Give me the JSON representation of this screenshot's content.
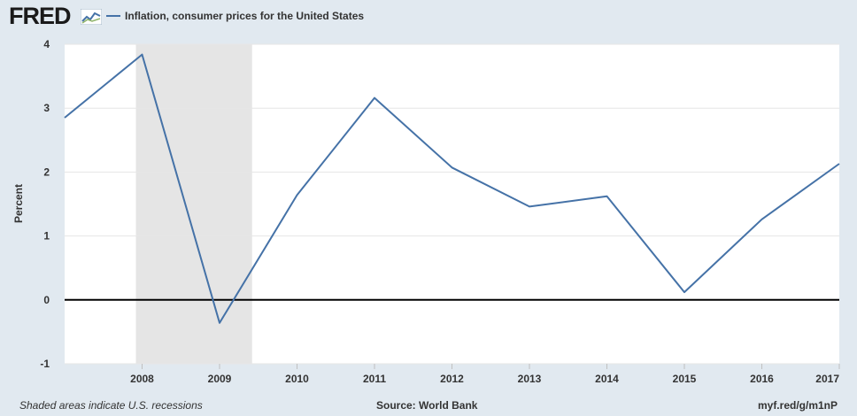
{
  "header": {
    "logo_text": "FRED",
    "logo_icon": "chart-line-icon",
    "legend_label": "Inflation, consumer prices for the United States"
  },
  "footer": {
    "left": "Shaded areas indicate U.S. recessions",
    "center": "Source: World Bank",
    "right": "myf.red/g/m1nP"
  },
  "colors": {
    "background": "#e1e9f0",
    "plot_background": "#ffffff",
    "series": "#4572a7",
    "recession": "#e5e5e5",
    "zero_line": "#000000",
    "grid": "#e6e6e6"
  },
  "chart_data": {
    "type": "line",
    "title": "",
    "xlabel": "",
    "ylabel": "Percent",
    "ylim": [
      -1,
      4
    ],
    "xlim": [
      2007,
      2017
    ],
    "yticks": [
      -1,
      0,
      1,
      2,
      3,
      4
    ],
    "xticks": [
      2008,
      2009,
      2010,
      2011,
      2012,
      2013,
      2014,
      2015,
      2016,
      2017
    ],
    "grid": true,
    "legend_position": "top-left",
    "recessions": [
      {
        "start": 2007.92,
        "end": 2009.42
      }
    ],
    "series": [
      {
        "name": "Inflation, consumer prices for the United States",
        "x": [
          2007,
          2008,
          2009,
          2010,
          2011,
          2012,
          2013,
          2014,
          2015,
          2016,
          2017
        ],
        "values": [
          2.85,
          3.84,
          -0.36,
          1.64,
          3.16,
          2.07,
          1.46,
          1.62,
          0.12,
          1.26,
          2.13
        ]
      }
    ]
  }
}
